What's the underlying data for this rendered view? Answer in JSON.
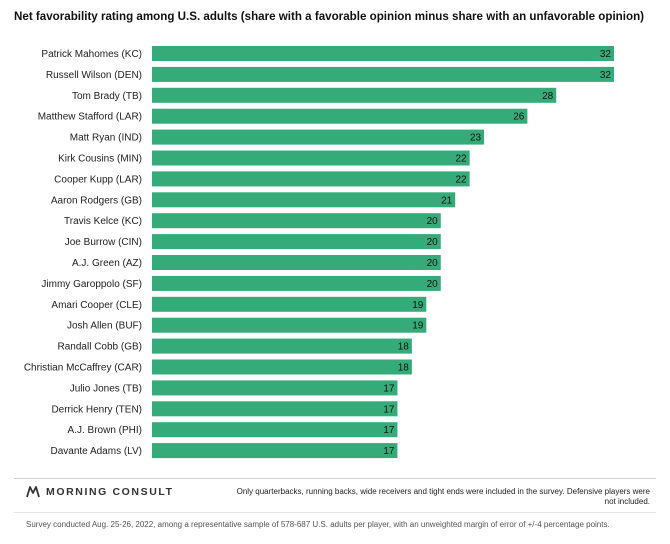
{
  "title": "Net favorability rating among U.S. adults (share with a favorable opinion minus share with an unfavorable opinion)",
  "brand": "MORNING CONSULT",
  "brand_icon": "morning-consult-logo-icon",
  "note": "Only quarterbacks, running backs, wide receivers and tight ends were included in the survey. Defensive players were not included.",
  "source": "Survey conducted Aug. 25-26, 2022, among a representative sample of 578-687 U.S. adults per player, with an unweighted margin of error of +/-4 percentage points.",
  "chart_data": {
    "type": "bar",
    "orientation": "horizontal",
    "title": "Net favorability rating among U.S. adults (share with a favorable opinion minus share with an unfavorable opinion)",
    "categories": [
      "Patrick Mahomes (KC)",
      "Russell Wilson (DEN)",
      "Tom Brady (TB)",
      "Matthew Stafford (LAR)",
      "Matt Ryan (IND)",
      "Kirk Cousins (MIN)",
      "Cooper Kupp (LAR)",
      "Aaron Rodgers (GB)",
      "Travis Kelce (KC)",
      "Joe Burrow (CIN)",
      "A.J. Green (AZ)",
      "Jimmy Garoppolo (SF)",
      "Amari Cooper (CLE)",
      "Josh Allen (BUF)",
      "Randall Cobb (GB)",
      "Christian McCaffrey (CAR)",
      "Julio Jones (TB)",
      "Derrick Henry (TEN)",
      "A.J. Brown (PHI)",
      "Davante Adams (LV)"
    ],
    "values": [
      32,
      32,
      28,
      26,
      23,
      22,
      22,
      21,
      20,
      20,
      20,
      20,
      19,
      19,
      18,
      18,
      17,
      17,
      17,
      17
    ],
    "xlim": [
      0,
      32
    ],
    "bar_color": "#34ab78",
    "grid": false,
    "data_labels": true
  }
}
